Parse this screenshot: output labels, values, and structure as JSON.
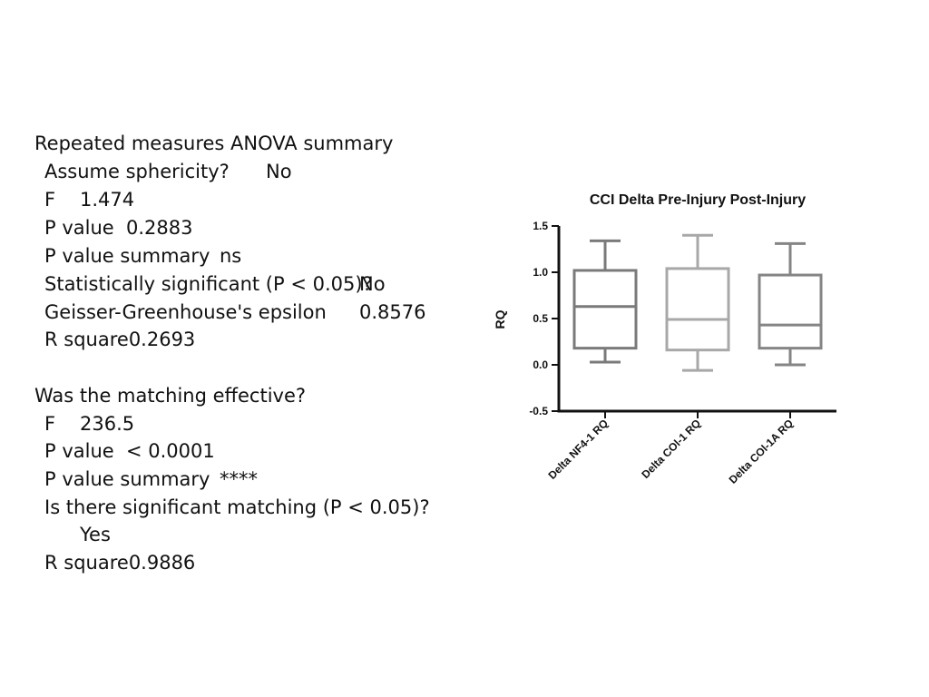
{
  "anova": {
    "heading": "Repeated measures ANOVA summary",
    "rows": [
      {
        "label": "Assume sphericity?",
        "value": "No"
      },
      {
        "label": "F",
        "value": "1.474"
      },
      {
        "label": "P value",
        "value": "0.2883"
      },
      {
        "label": "P value summary",
        "value": "ns"
      },
      {
        "label": "Statistically significant (P < 0.05)?",
        "value": "No"
      },
      {
        "label": "Geisser-Greenhouse's epsilon",
        "value": "0.8576"
      },
      {
        "label": "R square",
        "value": "0.2693"
      }
    ]
  },
  "matching": {
    "heading": "Was the matching effective?",
    "rows": [
      {
        "label": "F",
        "value": "236.5"
      },
      {
        "label": "P value",
        "value": "< 0.0001"
      },
      {
        "label": "P value summary",
        "value": "****"
      },
      {
        "label": "Is there significant matching (P < 0.05)?",
        "value": "Yes"
      },
      {
        "label": "R square",
        "value": "0.9886"
      }
    ]
  },
  "chart_data": {
    "type": "box",
    "title": "CCI Delta Pre-Injury Post-Injury",
    "xlabel": "",
    "ylabel": "RQ",
    "ylim": [
      -0.5,
      1.5
    ],
    "yticks": [
      "1.5",
      "1.0",
      "0.5",
      "0.0",
      "-0.5"
    ],
    "ytick_values": [
      1.5,
      1.0,
      0.5,
      0.0,
      -0.5
    ],
    "categories": [
      "Delta NF4-1 RQ",
      "Delta COl-1 RQ",
      "Delta COl-1A RQ"
    ],
    "boxes": [
      {
        "min": 0.03,
        "q1": 0.18,
        "median": 0.63,
        "q3": 1.02,
        "max": 1.34,
        "color": "#7a7a7a"
      },
      {
        "min": -0.06,
        "q1": 0.16,
        "median": 0.49,
        "q3": 1.04,
        "max": 1.4,
        "color": "#a8a8a8"
      },
      {
        "min": 0.0,
        "q1": 0.18,
        "median": 0.43,
        "q3": 0.97,
        "max": 1.31,
        "color": "#858585"
      }
    ],
    "axis_color": "#111111",
    "grid": false,
    "legend": "none"
  }
}
